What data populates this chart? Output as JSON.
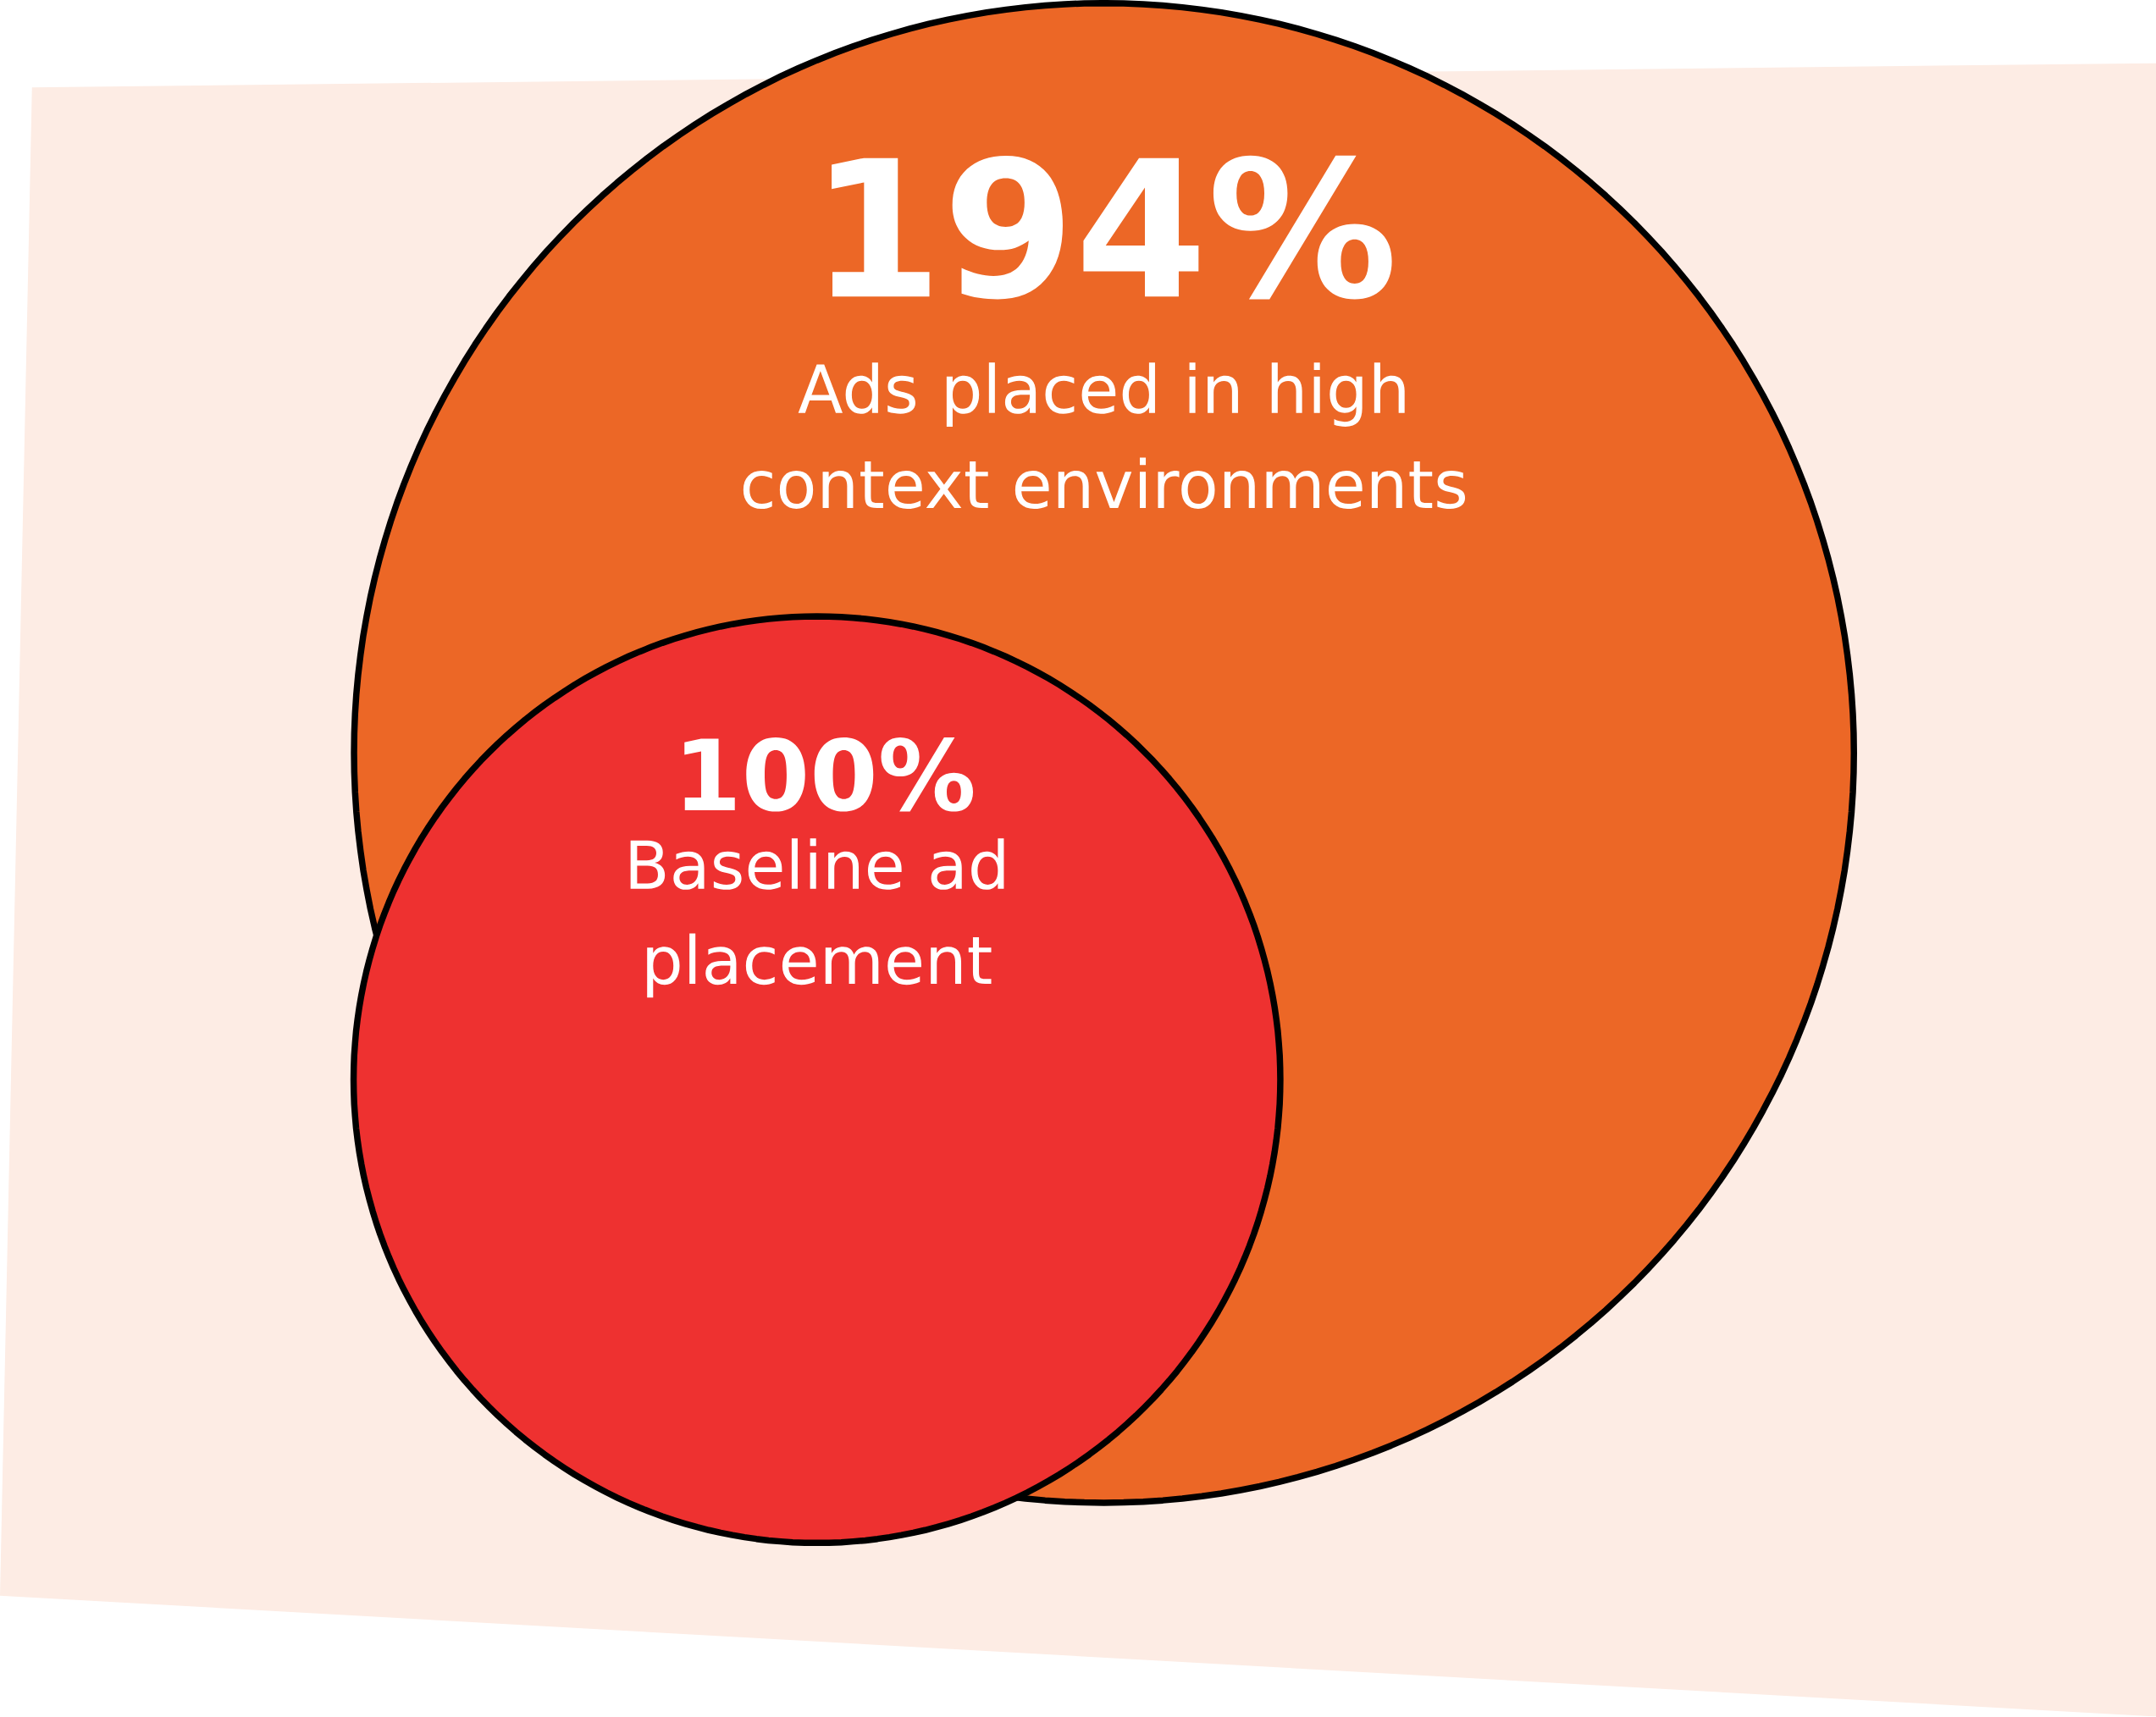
{
  "chart_data": {
    "type": "other",
    "categories": [
      "Ads placed in high context environments",
      "Baseline ad placement"
    ],
    "values": [
      194,
      100
    ],
    "value_labels": [
      "194%",
      "100%"
    ],
    "colors": [
      "#ec6726",
      "#ee3130"
    ]
  }
}
